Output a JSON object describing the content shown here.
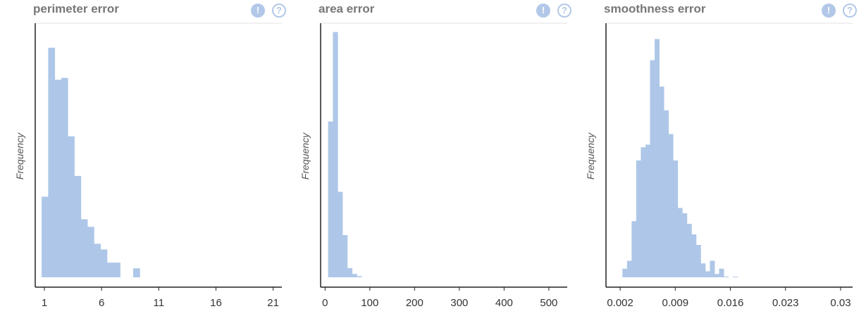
{
  "colors": {
    "bar": "#aec7e8",
    "title": "#777777",
    "icon": "#b3c8e8"
  },
  "icons": {
    "warning": "exclamation-circle-icon",
    "help": "question-circle-icon"
  },
  "chart_data": [
    {
      "type": "bar",
      "title": "perimeter error",
      "ylabel": "Frequency",
      "xlim": [
        0.2,
        22.5
      ],
      "ylim": [
        0,
        140
      ],
      "xticks": [
        "1",
        "6",
        "11",
        "16",
        "21"
      ],
      "tick_values": [
        1,
        6,
        11,
        16,
        21
      ],
      "bin_start": 0.76,
      "bin_width": 0.5718,
      "values": [
        48,
        127,
        110,
        111,
        80,
        59,
        36,
        32,
        23,
        20,
        13,
        13,
        5,
        5,
        10,
        5,
        2,
        3,
        3,
        2,
        0,
        1,
        0,
        0,
        0,
        0,
        0,
        0,
        0,
        0,
        0,
        0,
        0,
        0,
        0,
        0,
        0,
        0,
        0,
        0,
        0,
        0,
        0,
        0,
        0,
        0,
        1,
        0,
        0,
        0,
        0,
        0,
        0,
        0,
        0,
        0,
        1
      ]
    },
    {
      "type": "bar",
      "title": "area error",
      "ylabel": "Frequency",
      "xlim": [
        -10,
        560
      ],
      "ylim": [
        0,
        360
      ],
      "xticks": [
        "0",
        "100",
        "200",
        "300",
        "400",
        "500"
      ],
      "tick_values": [
        0,
        100,
        200,
        300,
        400,
        500
      ],
      "bin_start": 6.8,
      "bin_width": 10.7,
      "values": [
        226,
        348,
        130,
        71,
        26,
        18,
        15,
        10,
        12,
        8,
        6,
        3,
        2,
        2,
        2,
        1,
        0,
        1,
        0,
        0,
        1,
        1,
        0,
        0,
        0,
        0,
        0,
        0,
        0,
        0,
        0,
        0,
        0,
        0,
        0,
        0,
        0,
        0,
        0,
        0,
        0,
        0,
        0,
        0,
        0,
        0,
        0,
        0,
        0,
        1
      ]
    },
    {
      "type": "bar",
      "title": "smoothness error",
      "ylabel": "Frequency",
      "xlim": [
        0.0002,
        0.0326
      ],
      "ylim": [
        0,
        100
      ],
      "xticks": [
        "0.002",
        "0.009",
        "0.016",
        "0.023",
        "0.03"
      ],
      "tick_values": [
        0.002,
        0.009,
        0.016,
        0.023,
        0.03
      ],
      "bin_start": 0.0017,
      "bin_width": 0.000585,
      "values": [
        2,
        7,
        10,
        25,
        48,
        53,
        54,
        86,
        94,
        76,
        67,
        58,
        48,
        30,
        28,
        24,
        20,
        16,
        9,
        6,
        10,
        5,
        7,
        4,
        2,
        4,
        3,
        0,
        1,
        3,
        0,
        0,
        0,
        1,
        0,
        1,
        1,
        0,
        1,
        0,
        0,
        0,
        0,
        0,
        0,
        0,
        0,
        0,
        0,
        0,
        0,
        0,
        0,
        0,
        1
      ]
    }
  ]
}
